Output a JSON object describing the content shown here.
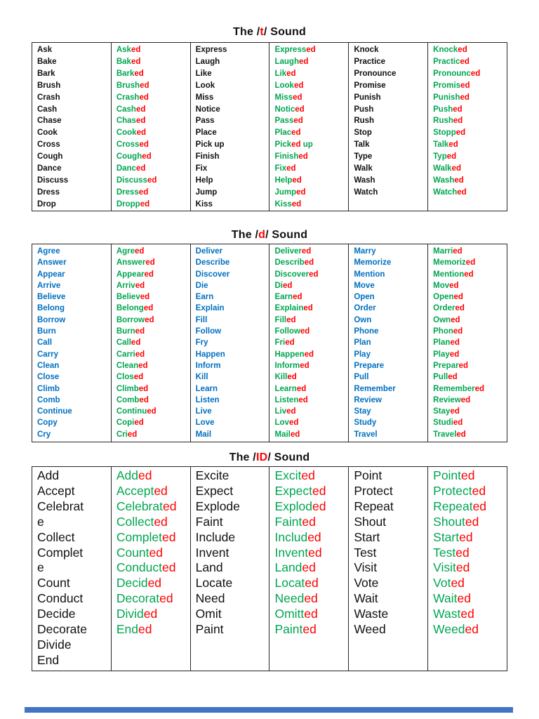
{
  "page": {
    "background": "#ffffff",
    "bottom_bar_color": "#4472C4"
  },
  "colors": {
    "green": "#00A651",
    "red": "#FF0000",
    "blue": "#0070C0",
    "black": "#111111"
  },
  "tables": [
    {
      "title": {
        "prefix": "The /",
        "sound": "t",
        "suffix": "/ Sound"
      },
      "base_color": "#111111",
      "columns": [
        {
          "kind": "base",
          "words": [
            "Ask",
            "Bake",
            "Bark",
            "Brush",
            "Crash",
            "Cash",
            "Chase",
            "Cook",
            "Cross",
            "Cough",
            "Dance",
            "Discuss",
            "Dress",
            "Drop"
          ]
        },
        {
          "kind": "past",
          "words": [
            "Ask[ed]",
            "Bak[ed]",
            "Bark[ed]",
            "Brush[ed]",
            "Crash[ed]",
            "Cash[ed]",
            "Chas[ed]",
            "Cook[ed]",
            "Cross[ed]",
            "Cough[ed]",
            "Danc[ed]",
            "Discuss[ed]",
            "Dress[ed]",
            "Dropp[ed]"
          ]
        },
        {
          "kind": "base",
          "words": [
            "Express",
            "Laugh",
            "Like",
            "Look",
            "Miss",
            "Notice",
            "Pass",
            "Place",
            "Pick up",
            "Finish",
            "Fix",
            "Help",
            "Jump",
            "Kiss"
          ]
        },
        {
          "kind": "past",
          "words": [
            "Express[ed]",
            "Laugh[ed]",
            "Lik[ed]",
            "Look[ed]",
            "Miss[ed]",
            "Notic[ed]",
            "Pass[ed]",
            "Plac[ed]",
            "Pick[ed] up",
            "Finish[ed]",
            "Fix[ed]",
            "Help[ed]",
            "Jump[ed]",
            "Kiss[ed]"
          ]
        },
        {
          "kind": "base",
          "words": [
            "Knock",
            "Practice",
            "Pronounce",
            "Promise",
            "Punish",
            "Push",
            "Rush",
            "Stop",
            "Talk",
            "Type",
            "Walk",
            "Wash",
            "Watch"
          ]
        },
        {
          "kind": "past",
          "words": [
            "Knock[ed]",
            "Practic[ed]",
            "Pronounc[ed]",
            "Promis[ed]",
            "Punish[ed]",
            "Push[ed]",
            "Rush[ed]",
            "Stopp[ed]",
            "Talk[ed]",
            "Typ[ed]",
            "Walk[ed]",
            "Wash[ed]",
            "Watch[ed]"
          ]
        }
      ]
    },
    {
      "title": {
        "prefix": "The /",
        "sound": "d",
        "suffix": "/ Sound"
      },
      "base_color": "#0070C0",
      "columns": [
        {
          "kind": "base",
          "words": [
            "Agree",
            "Answer",
            "Appear",
            "Arrive",
            "Believe",
            "Belong",
            "Borrow",
            "Burn",
            "Call",
            "Carry",
            "Clean",
            "Close",
            "Climb",
            "Comb",
            "Continue",
            "Copy",
            "Cry"
          ]
        },
        {
          "kind": "past",
          "words": [
            "Agre[ed]",
            "Answer[ed]",
            "Appear[ed]",
            "Arriv[ed]",
            "Believ[ed]",
            "Belong[ed]",
            "Borrow[ed]",
            "Burn[ed]",
            "Call[ed]",
            "Carri[ed]",
            "Clean[ed]",
            "Clos[ed]",
            "Climb[ed]",
            "Comb[ed]",
            "Continu[ed]",
            "Copi[ed]",
            "Cri[ed]"
          ]
        },
        {
          "kind": "base",
          "words": [
            "Deliver",
            "Describe",
            "Discover",
            "Die",
            "Earn",
            "Explain",
            "Fill",
            "Follow",
            "Fry",
            "Happen",
            "Inform",
            "Kill",
            "Learn",
            "Listen",
            "Live",
            "Love",
            "Mail"
          ]
        },
        {
          "kind": "past",
          "words": [
            "Deliver[ed]",
            "Describ[ed]",
            "Discover[ed]",
            "Di[ed]",
            "Earn[ed]",
            "Explain[ed]",
            "Fill[ed]",
            "Follow[ed]",
            "Fri[ed]",
            "Happen[ed]",
            "Inform[ed]",
            "Kill[ed]",
            "Learn[ed]",
            "Listen[ed]",
            "Liv[ed]",
            "Lov[ed]",
            "Mail[ed]"
          ]
        },
        {
          "kind": "base",
          "words": [
            "Marry",
            "Memorize",
            "Mention",
            "Move",
            "Open",
            "Order",
            "Own",
            "Phone",
            "Plan",
            "Play",
            "Prepare",
            "Pull",
            "Remember",
            "Review",
            "Stay",
            "Study",
            "Travel"
          ]
        },
        {
          "kind": "past",
          "words": [
            "Marri[ed]",
            "Memoriz[ed]",
            "Mention[ed]",
            "Mov[ed]",
            "Open[ed]",
            "Order[ed]",
            "Own[ed]",
            "Phon[ed]",
            "Plan[ed]",
            "Play[ed]",
            "Prepar[ed]",
            "Pull[ed]",
            "Remember[ed]",
            "Review[ed]",
            "Stay[ed]",
            "Studi[ed]",
            "Travel[ed]"
          ]
        }
      ]
    },
    {
      "title": {
        "prefix": "The /",
        "sound": "ID",
        "suffix": "/ Sound"
      },
      "base_color": "#111111",
      "columns": [
        {
          "kind": "base",
          "words": [
            "Add",
            "Accept",
            "Celebrat\ne",
            "Collect",
            "Complet\ne",
            "Count",
            "Conduct",
            "Decide",
            "Decorate",
            "Divide",
            "End"
          ]
        },
        {
          "kind": "past",
          "words": [
            "Add[ed]",
            "Accept[ed]",
            "Celebrat[ed]",
            "Collect[ed]",
            "Complet[ed]",
            "Count[ed]",
            "Conduct[ed]",
            "Decid[ed]",
            "Decorat[ed]",
            "Divid[ed]",
            "End[ed]"
          ]
        },
        {
          "kind": "base",
          "words": [
            "Excite",
            "Expect",
            "Explode",
            "Faint",
            "Include",
            "Invent",
            "Land",
            "Locate",
            "Need",
            "Omit",
            "Paint"
          ]
        },
        {
          "kind": "past",
          "words": [
            "Excit[ed]",
            "Expect[ed]",
            "Explod[ed]",
            "Faint[ed]",
            "Includ[ed]",
            "Invent[ed]",
            "Land[ed]",
            "Locat[ed]",
            "Need[ed]",
            "Omitt[ed]",
            "Paint[ed]"
          ]
        },
        {
          "kind": "base",
          "words": [
            "Point",
            "Protect",
            "Repeat",
            "Shout",
            "Start",
            "Test",
            "Visit",
            "Vote",
            "Wait",
            "Waste",
            "Weed"
          ]
        },
        {
          "kind": "past",
          "words": [
            "Point[ed]",
            "Protect[ed]",
            "Repeat[ed]",
            "Shout[ed]",
            "Start[ed]",
            "Test[ed]",
            "Visit[ed]",
            "Vot[ed]",
            "Wait[ed]",
            "Wast[ed]",
            "Weed[ed]"
          ]
        }
      ]
    }
  ]
}
